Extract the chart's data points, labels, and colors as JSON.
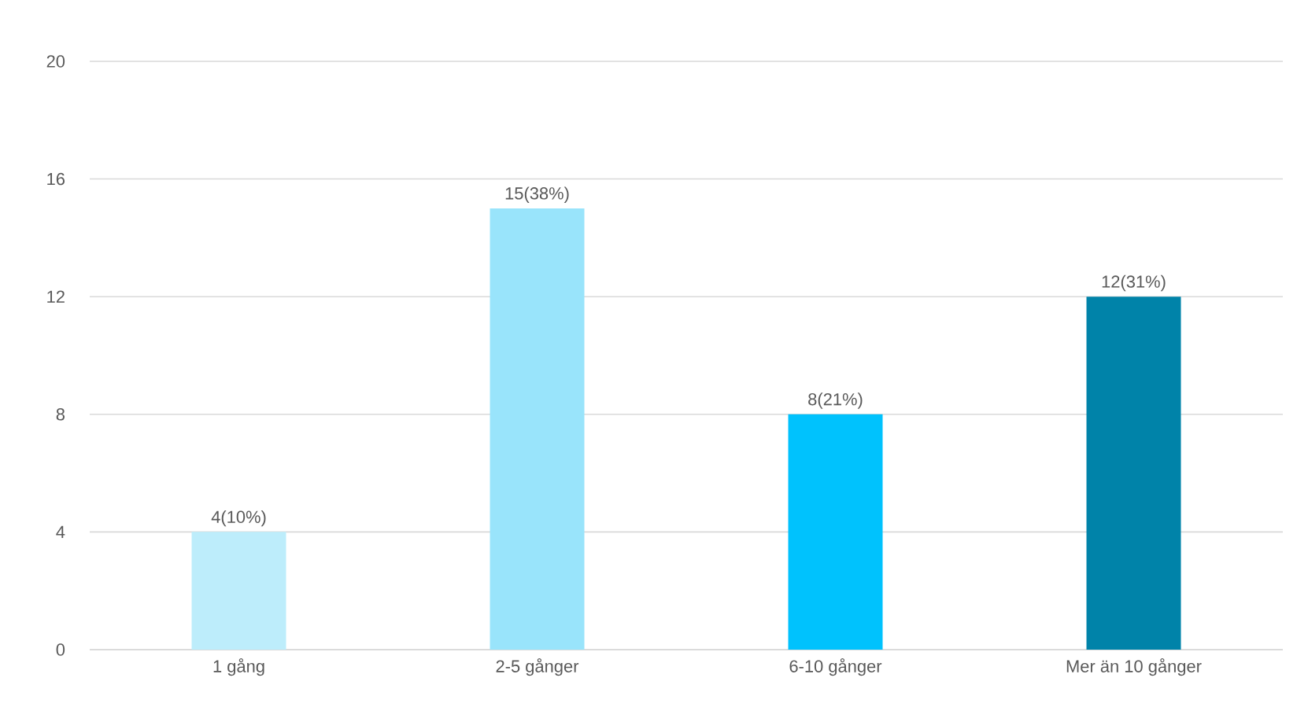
{
  "chart_data": {
    "type": "bar",
    "categories": [
      "1 gång",
      "2-5 gånger",
      "6-10 gånger",
      "Mer än 10 gånger"
    ],
    "values": [
      4,
      15,
      8,
      12
    ],
    "colors": [
      "#bdedfb",
      "#99e4fb",
      "#00c2fd",
      "#0083a9"
    ],
    "value_labels": [
      "4(10%)",
      "15(38%)",
      "8(21%)",
      "12(31%)"
    ],
    "ylim": [
      0,
      20
    ],
    "yticks": [
      0,
      4,
      8,
      12,
      16,
      20
    ],
    "grid": "y"
  }
}
